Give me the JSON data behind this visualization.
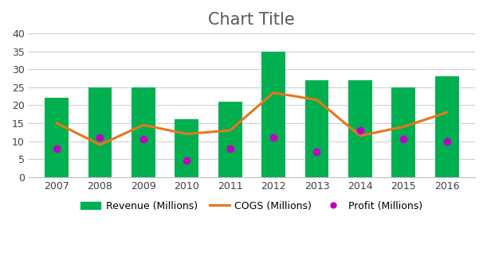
{
  "title": "Chart Title",
  "years": [
    2007,
    2008,
    2009,
    2010,
    2011,
    2012,
    2013,
    2014,
    2015,
    2016
  ],
  "revenue": [
    22,
    25,
    25,
    16,
    21,
    35,
    27,
    27,
    25,
    28
  ],
  "cogs": [
    15,
    9,
    14.5,
    12,
    13,
    23.5,
    21.5,
    11.5,
    14,
    18
  ],
  "profit": [
    8,
    11,
    10.5,
    4.5,
    8,
    11,
    7,
    13,
    10.5,
    10
  ],
  "bar_color": "#00B050",
  "cogs_color": "#E8761A",
  "profit_color": "#C000C0",
  "bg_color": "#FFFFFF",
  "plot_bg_color": "#FFFFFF",
  "title_fontsize": 15,
  "ylim": [
    0,
    40
  ],
  "yticks": [
    0,
    5,
    10,
    15,
    20,
    25,
    30,
    35,
    40
  ],
  "legend_labels": [
    "Revenue (Millions)",
    "COGS (Millions)",
    "Profit (Millions)"
  ],
  "grid_color": "#D0D0D0",
  "title_color": "#595959"
}
